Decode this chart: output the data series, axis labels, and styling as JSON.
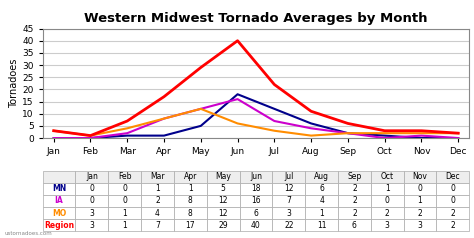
{
  "title": "Western Midwest Tornado Averages by Month",
  "months": [
    "Jan",
    "Feb",
    "Mar",
    "Apr",
    "May",
    "Jun",
    "Jul",
    "Aug",
    "Sep",
    "Oct",
    "Nov",
    "Dec"
  ],
  "series": {
    "MN": [
      0,
      0,
      1,
      1,
      5,
      18,
      12,
      6,
      2,
      1,
      0,
      0
    ],
    "IA": [
      0,
      0,
      2,
      8,
      12,
      16,
      7,
      4,
      2,
      0,
      1,
      0
    ],
    "MO": [
      3,
      1,
      4,
      8,
      12,
      6,
      3,
      1,
      2,
      2,
      2,
      2
    ],
    "Region": [
      3,
      1,
      7,
      17,
      29,
      40,
      22,
      11,
      6,
      3,
      3,
      2
    ]
  },
  "colors": {
    "MN": "#00008B",
    "IA": "#CC00CC",
    "MO": "#FF8C00",
    "Region": "#FF0000"
  },
  "ylabel": "Tornadoes",
  "ylim": [
    0,
    45
  ],
  "yticks": [
    0,
    5,
    10,
    15,
    20,
    25,
    30,
    35,
    40,
    45
  ],
  "background_color": "#FFFFFF",
  "plot_bg_color": "#FFFFFF",
  "grid_color": "#CCCCCC",
  "watermark": "ustornadoes.com",
  "legend_values": {
    "MN": [
      0,
      0,
      1,
      1,
      5,
      18,
      12,
      6,
      2,
      1,
      0,
      0
    ],
    "IA": [
      0,
      0,
      2,
      8,
      12,
      16,
      7,
      4,
      2,
      0,
      1,
      0
    ],
    "MO": [
      3,
      1,
      4,
      8,
      12,
      6,
      3,
      1,
      2,
      2,
      2,
      2
    ],
    "Region": [
      3,
      1,
      7,
      17,
      29,
      40,
      22,
      11,
      6,
      3,
      3,
      2
    ]
  }
}
